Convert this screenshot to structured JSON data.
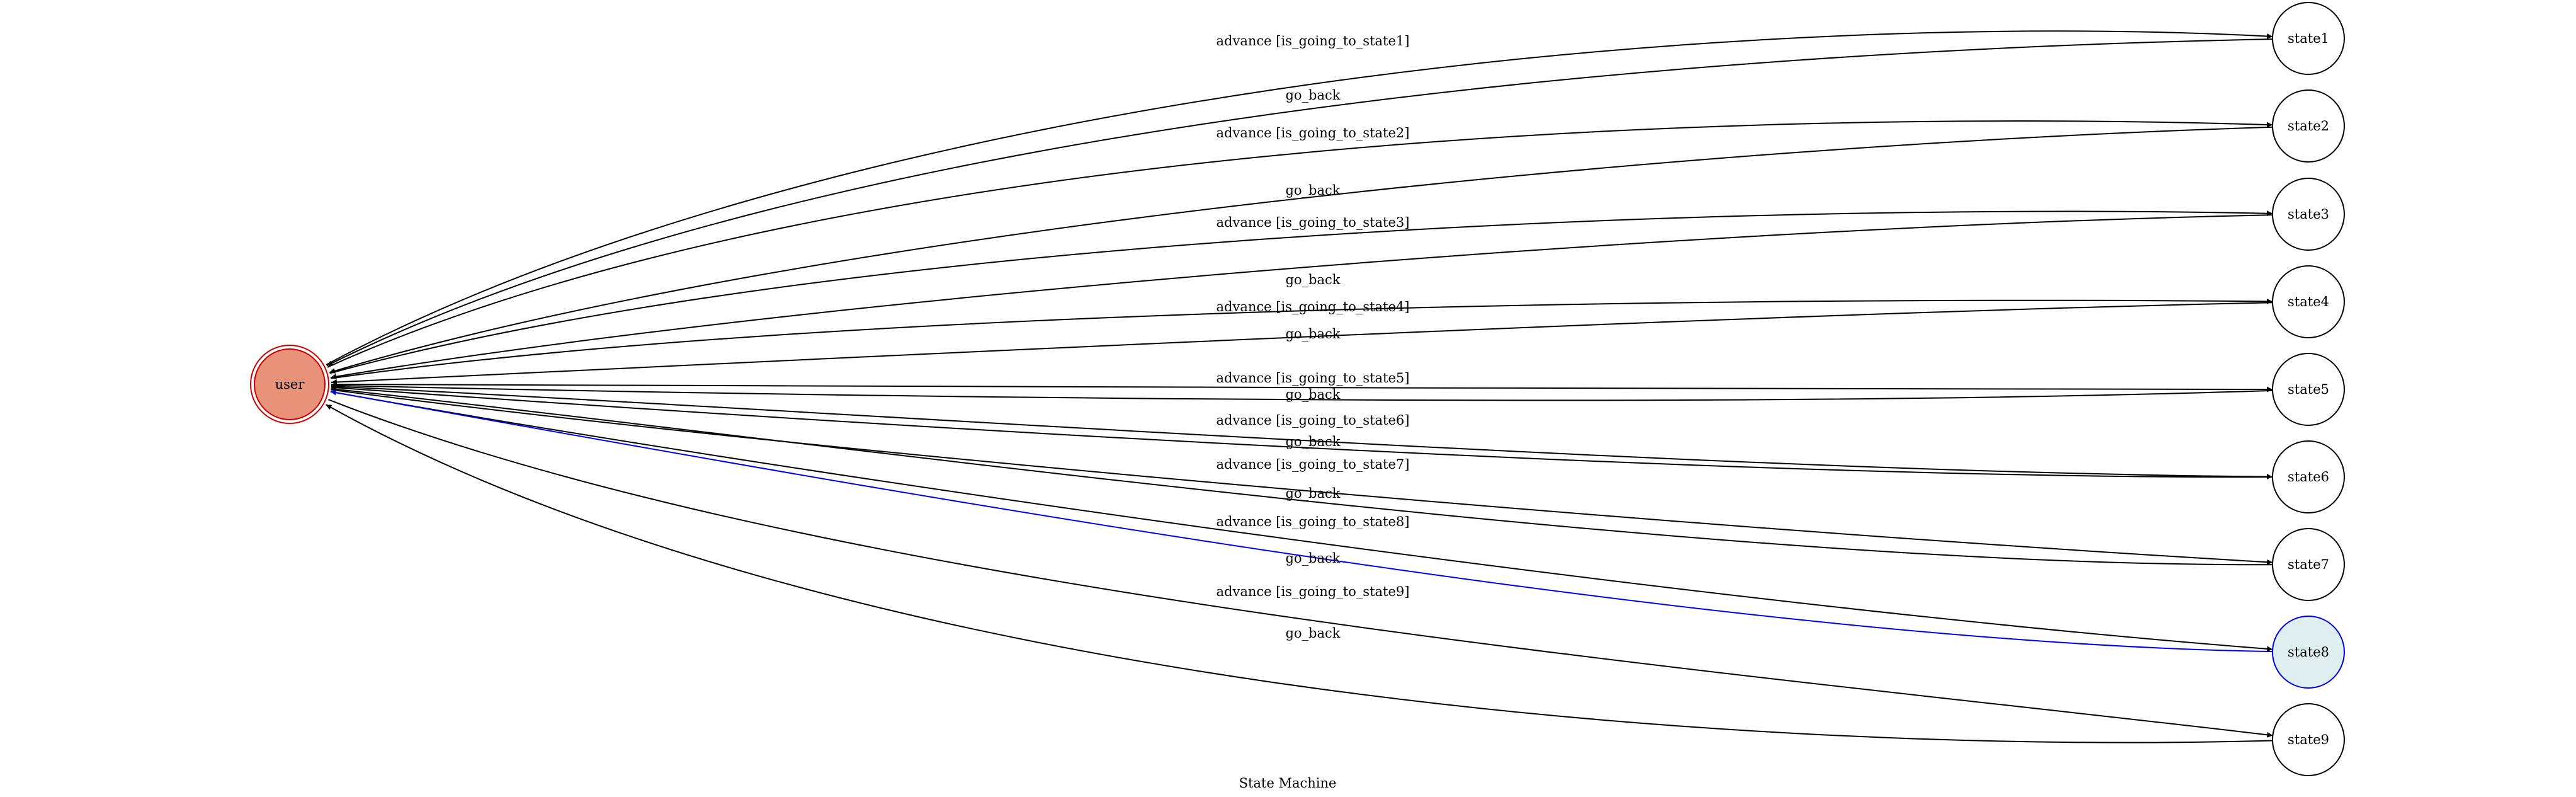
{
  "diagram": {
    "caption": "State Machine",
    "colors": {
      "user_fill": "#e8927a",
      "user_border": "#cc0000",
      "active_fill": "#dfeeee",
      "active_border": "#0000ee",
      "active_edge": "#0000ee",
      "default_stroke": "#000000"
    },
    "nodes": [
      {
        "id": "user",
        "label": "user",
        "kind": "initial"
      },
      {
        "id": "state1",
        "label": "state1"
      },
      {
        "id": "state2",
        "label": "state2"
      },
      {
        "id": "state3",
        "label": "state3"
      },
      {
        "id": "state4",
        "label": "state4"
      },
      {
        "id": "state5",
        "label": "state5"
      },
      {
        "id": "state6",
        "label": "state6"
      },
      {
        "id": "state7",
        "label": "state7"
      },
      {
        "id": "state8",
        "label": "state8",
        "kind": "active"
      },
      {
        "id": "state9",
        "label": "state9"
      }
    ],
    "edges": [
      {
        "from": "user",
        "to": "state1",
        "label": "advance [is_going_to_state1]"
      },
      {
        "from": "state1",
        "to": "user",
        "label": "go_back"
      },
      {
        "from": "user",
        "to": "state2",
        "label": "advance [is_going_to_state2]"
      },
      {
        "from": "state2",
        "to": "user",
        "label": "go_back"
      },
      {
        "from": "user",
        "to": "state3",
        "label": "advance [is_going_to_state3]"
      },
      {
        "from": "state3",
        "to": "user",
        "label": "go_back"
      },
      {
        "from": "user",
        "to": "state4",
        "label": "advance [is_going_to_state4]"
      },
      {
        "from": "state4",
        "to": "user",
        "label": "go_back"
      },
      {
        "from": "user",
        "to": "state5",
        "label": "advance [is_going_to_state5]"
      },
      {
        "from": "state5",
        "to": "user",
        "label": "go_back"
      },
      {
        "from": "user",
        "to": "state6",
        "label": "advance [is_going_to_state6]"
      },
      {
        "from": "state6",
        "to": "user",
        "label": "go_back"
      },
      {
        "from": "user",
        "to": "state7",
        "label": "advance [is_going_to_state7]"
      },
      {
        "from": "state7",
        "to": "user",
        "label": "go_back"
      },
      {
        "from": "user",
        "to": "state8",
        "label": "advance [is_going_to_state8]"
      },
      {
        "from": "state8",
        "to": "user",
        "label": "go_back",
        "active": true
      },
      {
        "from": "user",
        "to": "state9",
        "label": "advance [is_going_to_state9]"
      },
      {
        "from": "state9",
        "to": "user",
        "label": "go_back"
      }
    ]
  }
}
